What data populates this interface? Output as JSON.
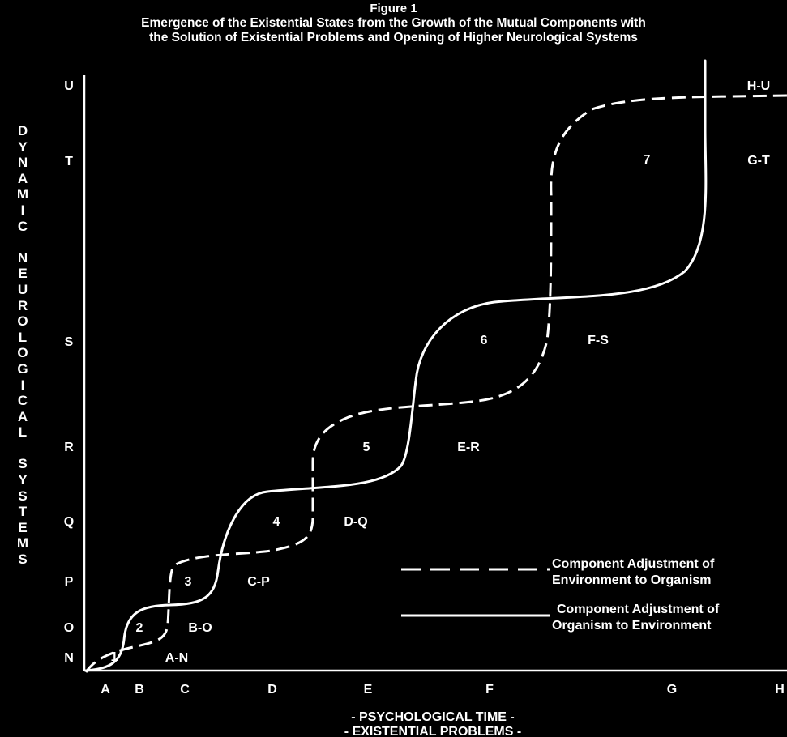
{
  "figure_label": "Figure 1",
  "title_line1": "Emergence of the Existential States from the Growth of the Mutual Components with",
  "title_line2": "the Solution of Existential Problems and Opening of Higher Neurological Systems",
  "y_axis_label_lines": [
    "D",
    "Y",
    "N",
    "A",
    "M",
    "I",
    "C",
    "",
    "N",
    "E",
    "U",
    "R",
    "O",
    "L",
    "O",
    "G",
    "I",
    "C",
    "A",
    "L",
    "",
    "S",
    "Y",
    "S",
    "T",
    "E",
    "M",
    "S"
  ],
  "y_ticks": [
    "U",
    "T",
    "S",
    "R",
    "Q",
    "P",
    "O",
    "N"
  ],
  "x_ticks": [
    "A",
    "B",
    "C",
    "D",
    "E",
    "F",
    "G",
    "H"
  ],
  "x_axis_label_line1": "- PSYCHOLOGICAL TIME -",
  "x_axis_label_line2": "-  EXISTENTIAL PROBLEMS -",
  "state_numbers": [
    "1",
    "2",
    "3",
    "4",
    "5",
    "6",
    "7"
  ],
  "state_labels": [
    "A-N",
    "B-O",
    "C-P",
    "D-Q",
    "E-R",
    "F-S",
    "G-T",
    "H-U"
  ],
  "legend": {
    "dashed_line1": "Component Adjustment of",
    "dashed_line2": "Environment to Organism",
    "solid_line1": "Component Adjustment of",
    "solid_line2": "Organism to Environment"
  },
  "colors": {
    "background": "#000000",
    "foreground": "#ffffff"
  }
}
